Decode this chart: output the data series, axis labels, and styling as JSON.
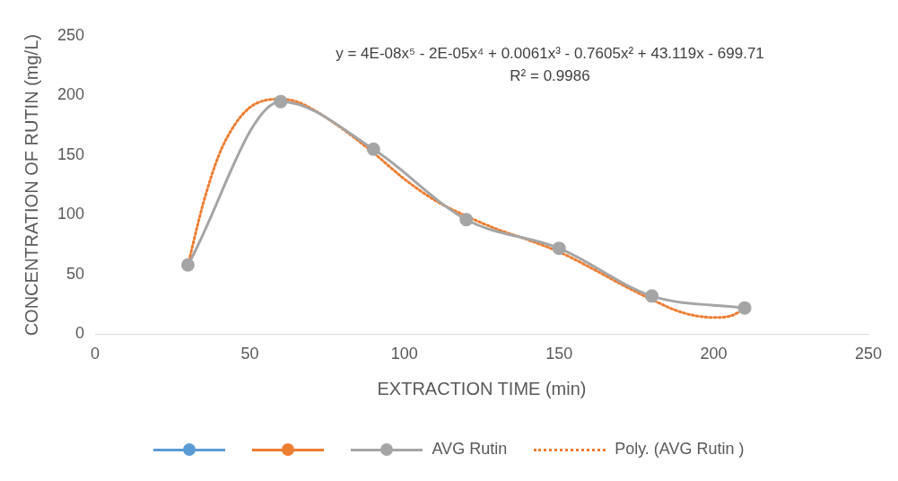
{
  "chart_data": {
    "type": "line",
    "xlabel": "EXTRACTION TIME (min)",
    "ylabel": "CONCENTRATION OF RUTIN (mg/L)",
    "x": [
      30,
      60,
      90,
      120,
      150,
      180,
      210
    ],
    "series": [
      {
        "color": "#5b9bd5",
        "values": [
          null,
          null,
          null,
          null,
          null,
          null,
          null
        ],
        "marker": "circle",
        "line_style": "solid"
      },
      {
        "color": "#ed7d31",
        "values": [
          null,
          null,
          null,
          null,
          null,
          null,
          null
        ],
        "marker": "circle",
        "line_style": "solid"
      },
      {
        "name": "AVG Rutin",
        "color": "#a5a5a5",
        "values": [
          58,
          195,
          155,
          96,
          72,
          32,
          22
        ],
        "marker": "circle",
        "line_style": "solid"
      },
      {
        "name": "Poly. (AVG Rutin )",
        "color": "#ed7d31",
        "marker": "none",
        "line_style": "dotted",
        "x": [
          30,
          35,
          40,
          45,
          50,
          55,
          60,
          65,
          70,
          80,
          90,
          100,
          110,
          120,
          130,
          140,
          150,
          160,
          170,
          180,
          190,
          200,
          205,
          210
        ],
        "values": [
          58,
          110,
          150,
          175,
          190,
          196,
          197,
          195,
          189,
          172,
          152,
          130,
          112,
          99,
          88,
          79,
          69,
          56,
          42,
          29,
          18,
          14,
          15,
          21
        ]
      }
    ],
    "xlim": [
      0,
      250
    ],
    "xticks": [
      0,
      50,
      100,
      150,
      200,
      250
    ],
    "ylim": [
      0,
      250
    ],
    "yticks": [
      0,
      50,
      100,
      150,
      200,
      250
    ],
    "grid": false,
    "legend": "bottom",
    "annotations": [
      "y = 4E-08x⁵ - 2E-05x⁴ + 0.0061x³ - 0.7605x² + 43.119x - 699.71",
      "R² = 0.9986"
    ]
  }
}
